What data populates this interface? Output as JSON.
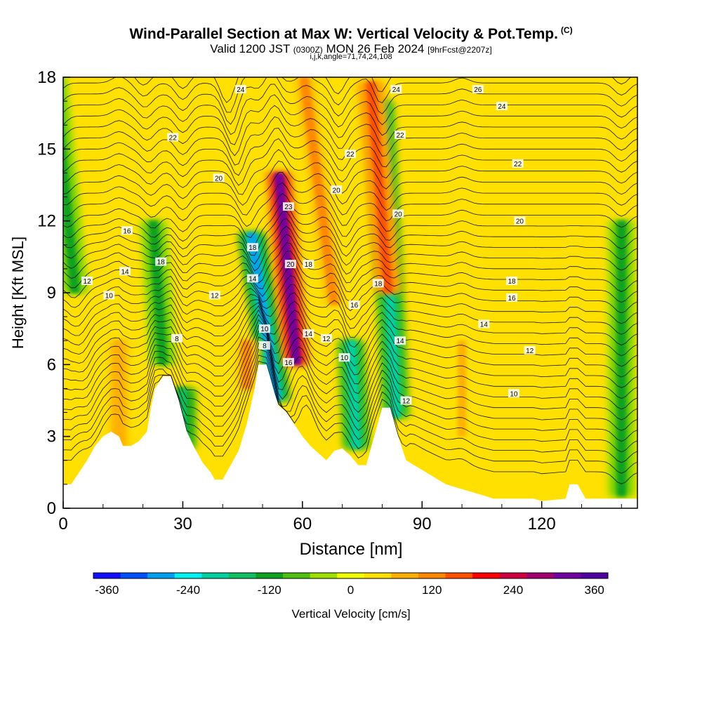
{
  "header": {
    "title": "Wind-Parallel Section at Max W: Vertical Velocity & Pot.Temp.",
    "title_mark": "(C)",
    "valid_prefix": "Valid 1200 JST",
    "valid_utc": "(0300Z)",
    "valid_date": "MON 26 Feb 2024",
    "forecast": "[9hrFcst@2207z]",
    "indices": "i,j,k,angle=71,74,24,108"
  },
  "chart_data": {
    "type": "heatmap",
    "xlabel": "Distance [nm]",
    "ylabel": "Height [Kft MSL]",
    "xlim": [
      0,
      144
    ],
    "ylim": [
      0,
      18
    ],
    "x_ticks": [
      0,
      30,
      60,
      90,
      120
    ],
    "y_ticks": [
      0,
      3,
      6,
      9,
      12,
      15,
      18
    ],
    "grid": false,
    "colorbar": {
      "label": "Vertical Velocity [cm/s]",
      "min": -380,
      "max": 380,
      "step": 40,
      "tick_values": [
        -360,
        -240,
        -120,
        0,
        120,
        240,
        360
      ],
      "colors": [
        "#1010ff",
        "#0050ff",
        "#00a0f0",
        "#00f0f0",
        "#00d0a0",
        "#10c060",
        "#10a020",
        "#50c010",
        "#a0e000",
        "#f0ff00",
        "#ffe000",
        "#ffb000",
        "#ff8800",
        "#ff5000",
        "#ff0000",
        "#d00040",
        "#a00070",
        "#7000a0",
        "#5000a0"
      ]
    },
    "terrain_kft": [
      [
        0,
        1.0
      ],
      [
        2,
        1.0
      ],
      [
        4,
        1.5
      ],
      [
        6,
        2.0
      ],
      [
        8,
        2.6
      ],
      [
        10,
        3.0
      ],
      [
        12,
        3.2
      ],
      [
        14,
        3.0
      ],
      [
        15,
        2.6
      ],
      [
        17,
        2.6
      ],
      [
        19,
        2.8
      ],
      [
        21,
        3.2
      ],
      [
        22,
        4.2
      ],
      [
        23,
        5.0
      ],
      [
        25,
        5.5
      ],
      [
        27,
        5.5
      ],
      [
        29,
        4.5
      ],
      [
        31,
        3.2
      ],
      [
        33,
        2.5
      ],
      [
        35,
        1.9
      ],
      [
        37,
        1.5
      ],
      [
        38,
        1.2
      ],
      [
        40,
        1.2
      ],
      [
        42,
        1.8
      ],
      [
        44,
        2.4
      ],
      [
        46,
        3.5
      ],
      [
        48,
        5.0
      ],
      [
        49,
        6.0
      ],
      [
        51,
        6.0
      ],
      [
        53,
        4.8
      ],
      [
        54,
        4.3
      ],
      [
        56,
        4.0
      ],
      [
        58,
        3.5
      ],
      [
        60,
        3.0
      ],
      [
        62,
        2.6
      ],
      [
        64,
        2.3
      ],
      [
        66,
        2.0
      ],
      [
        68,
        2.4
      ],
      [
        70,
        2.5
      ],
      [
        72,
        2.2
      ],
      [
        74,
        1.8
      ],
      [
        76,
        1.8
      ],
      [
        78,
        3.0
      ],
      [
        80,
        4.2
      ],
      [
        82,
        4.2
      ],
      [
        84,
        3.0
      ],
      [
        86,
        2.0
      ],
      [
        88,
        1.8
      ],
      [
        90,
        1.6
      ],
      [
        92,
        1.4
      ],
      [
        94,
        1.2
      ],
      [
        96,
        1.0
      ],
      [
        100,
        0.8
      ],
      [
        104,
        0.6
      ],
      [
        108,
        0.4
      ],
      [
        118,
        0.4
      ],
      [
        120,
        0.3
      ],
      [
        126,
        0.4
      ],
      [
        127,
        1.0
      ],
      [
        129,
        1.0
      ],
      [
        131,
        0.4
      ],
      [
        144,
        0.4
      ]
    ],
    "updrafts": [
      {
        "x": 58.5,
        "top_kft": 14.0,
        "bottom_kft": 6.0,
        "lean_nm_per_kft": -0.55,
        "w_cm_s": 300
      },
      {
        "x": 81.5,
        "top_kft": 17.8,
        "bottom_kft": 9.0,
        "lean_nm_per_kft": -0.5,
        "w_cm_s": 140
      },
      {
        "x": 68.0,
        "top_kft": 18.0,
        "bottom_kft": 8.5,
        "lean_nm_per_kft": -0.8,
        "w_cm_s": 120
      },
      {
        "x": 46.0,
        "top_kft": 7.0,
        "bottom_kft": 5.0,
        "lean_nm_per_kft": 0.0,
        "w_cm_s": 120
      },
      {
        "x": 14.0,
        "top_kft": 7.0,
        "bottom_kft": 2.5,
        "lean_nm_per_kft": 0.0,
        "w_cm_s": 90
      },
      {
        "x": 100.0,
        "top_kft": 7.0,
        "bottom_kft": 3.0,
        "lean_nm_per_kft": 0.0,
        "w_cm_s": 70
      }
    ],
    "downdrafts": [
      {
        "x": 53.5,
        "top_kft": 11.5,
        "bottom_kft": 4.5,
        "lean_nm_per_kft": -0.9,
        "w_cm_s": -280
      },
      {
        "x": 83.5,
        "top_kft": 17.0,
        "bottom_kft": 3.8,
        "lean_nm_per_kft": -0.3,
        "w_cm_s": -220
      },
      {
        "x": 73.5,
        "top_kft": 7.0,
        "bottom_kft": 2.5,
        "lean_nm_per_kft": -0.3,
        "w_cm_s": -200
      },
      {
        "x": 30.0,
        "top_kft": 5.0,
        "bottom_kft": 2.5,
        "lean_nm_per_kft": 0.0,
        "w_cm_s": -150
      },
      {
        "x": 3.0,
        "top_kft": 18.0,
        "bottom_kft": 9.0,
        "lean_nm_per_kft": -0.6,
        "w_cm_s": -110
      },
      {
        "x": 25.0,
        "top_kft": 12.0,
        "bottom_kft": 6.0,
        "lean_nm_per_kft": -0.4,
        "w_cm_s": -120
      },
      {
        "x": 140.0,
        "top_kft": 12.0,
        "bottom_kft": 0.5,
        "lean_nm_per_kft": 0.0,
        "w_cm_s": -110
      }
    ],
    "theta_labels": [
      {
        "x": 44.5,
        "y": 17.5,
        "text": "24"
      },
      {
        "x": 83.5,
        "y": 17.5,
        "text": "24"
      },
      {
        "x": 104,
        "y": 17.5,
        "text": "26"
      },
      {
        "x": 110,
        "y": 16.8,
        "text": "24"
      },
      {
        "x": 27.5,
        "y": 15.5,
        "text": "22"
      },
      {
        "x": 84.5,
        "y": 15.6,
        "text": "22"
      },
      {
        "x": 72,
        "y": 14.8,
        "text": "22"
      },
      {
        "x": 114,
        "y": 14.4,
        "text": "22"
      },
      {
        "x": 39,
        "y": 13.8,
        "text": "20"
      },
      {
        "x": 68.5,
        "y": 13.3,
        "text": "20"
      },
      {
        "x": 56.5,
        "y": 12.6,
        "text": "23"
      },
      {
        "x": 84,
        "y": 12.3,
        "text": "20"
      },
      {
        "x": 114.5,
        "y": 12.0,
        "text": "20"
      },
      {
        "x": 16,
        "y": 11.6,
        "text": "16"
      },
      {
        "x": 47.5,
        "y": 10.9,
        "text": "18"
      },
      {
        "x": 57,
        "y": 10.2,
        "text": "20"
      },
      {
        "x": 61.5,
        "y": 10.2,
        "text": "18"
      },
      {
        "x": 24.5,
        "y": 10.3,
        "text": "18"
      },
      {
        "x": 15.5,
        "y": 9.9,
        "text": "14"
      },
      {
        "x": 6,
        "y": 9.5,
        "text": "12"
      },
      {
        "x": 47.5,
        "y": 9.6,
        "text": "14"
      },
      {
        "x": 79,
        "y": 9.4,
        "text": "18"
      },
      {
        "x": 112.5,
        "y": 9.5,
        "text": "18"
      },
      {
        "x": 11.5,
        "y": 8.9,
        "text": "10"
      },
      {
        "x": 38,
        "y": 8.9,
        "text": "12"
      },
      {
        "x": 73,
        "y": 8.5,
        "text": "16"
      },
      {
        "x": 112.5,
        "y": 8.8,
        "text": "16"
      },
      {
        "x": 105.5,
        "y": 7.7,
        "text": "14"
      },
      {
        "x": 50.5,
        "y": 7.5,
        "text": "10"
      },
      {
        "x": 61.5,
        "y": 7.3,
        "text": "14"
      },
      {
        "x": 66,
        "y": 7.1,
        "text": "12"
      },
      {
        "x": 84.5,
        "y": 7.0,
        "text": "14"
      },
      {
        "x": 28.5,
        "y": 7.1,
        "text": "8"
      },
      {
        "x": 50.5,
        "y": 6.8,
        "text": "8"
      },
      {
        "x": 70.5,
        "y": 6.3,
        "text": "10"
      },
      {
        "x": 56.5,
        "y": 6.1,
        "text": "16"
      },
      {
        "x": 117,
        "y": 6.6,
        "text": "12"
      },
      {
        "x": 86,
        "y": 4.5,
        "text": "12"
      },
      {
        "x": 113,
        "y": 4.8,
        "text": "10"
      }
    ]
  }
}
